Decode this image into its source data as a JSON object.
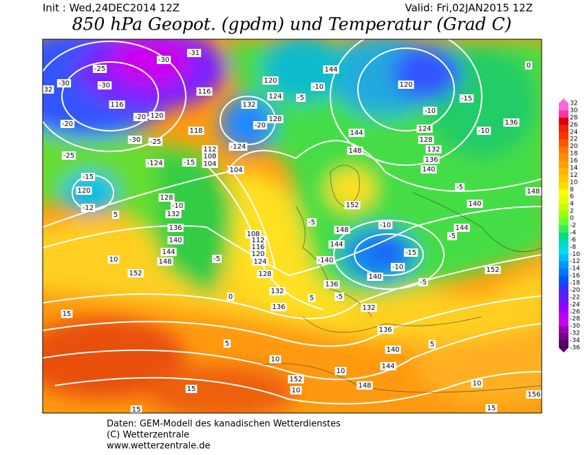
{
  "header": {
    "init": "Init : Wed,24DEC2014 12Z",
    "valid": "Valid: Fri,02JAN2015 12Z",
    "title": "850 hPa Geopot. (gpdm) und Temperatur (Grad C)"
  },
  "map": {
    "labels": [
      "-25",
      "-30",
      "-30",
      "116",
      "-30",
      "-31",
      "-20",
      "120",
      "-30",
      "-25",
      "-25",
      "-20",
      "32",
      "-124",
      "116",
      "118",
      "112",
      "108",
      "104",
      "-15",
      "-124",
      "104",
      "132",
      "128",
      "-20",
      "120",
      "124",
      "-10",
      "-5",
      "144",
      "144",
      "148",
      "124",
      "128",
      "132",
      "136",
      "140",
      "120",
      "-10",
      "-15",
      "136",
      "-10",
      "148",
      "140",
      "144",
      "-5",
      "-5",
      "-10",
      "-15",
      "-10",
      "140",
      "136",
      "-5",
      "132",
      "136",
      "140",
      "144",
      "148",
      "152",
      "10",
      "10",
      "10",
      "5",
      "0",
      "5",
      "-5",
      "128",
      "132",
      "136",
      "108",
      "112",
      "116",
      "120",
      "124",
      "128",
      "-10",
      "132",
      "136",
      "140",
      "144",
      "148",
      "152",
      "10",
      "15",
      "15",
      "15",
      "-15",
      "120",
      "-12",
      "5",
      "152",
      "148",
      "144",
      "-140",
      "-5",
      "152",
      "5",
      "10",
      "15",
      "156",
      "-5",
      "0"
    ]
  },
  "colorbar": {
    "labels": [
      32,
      30,
      28,
      26,
      24,
      22,
      20,
      18,
      16,
      14,
      12,
      10,
      8,
      6,
      4,
      2,
      0,
      -2,
      -4,
      -6,
      -8,
      -10,
      -12,
      -14,
      -16,
      -18,
      -20,
      -22,
      -24,
      -26,
      -28,
      -30,
      -32,
      -34,
      -36
    ],
    "colors": [
      "#ff66dd",
      "#ff33aa",
      "#dd0000",
      "#ee2200",
      "#ff3300",
      "#ff5500",
      "#ff7700",
      "#ff8c00",
      "#ffa000",
      "#ffb400",
      "#ffc800",
      "#ffdc00",
      "#ffff00",
      "#e6ff00",
      "#c0ff00",
      "#99ff00",
      "#66ff33",
      "#33ee55",
      "#00dd88",
      "#00ddbb",
      "#00ddee",
      "#00bbff",
      "#0099ff",
      "#0077ff",
      "#0055ff",
      "#3333ff",
      "#5522ff",
      "#7711ff",
      "#9900ff",
      "#bb00ff",
      "#cc00ee",
      "#9900aa",
      "#770088",
      "#550066"
    ]
  },
  "footer": {
    "lines": [
      "Daten: GEM-Modell des kanadischen Wetterdienstes",
      "(C) Wetterzentrale",
      "www.wetterzentrale.de"
    ]
  }
}
